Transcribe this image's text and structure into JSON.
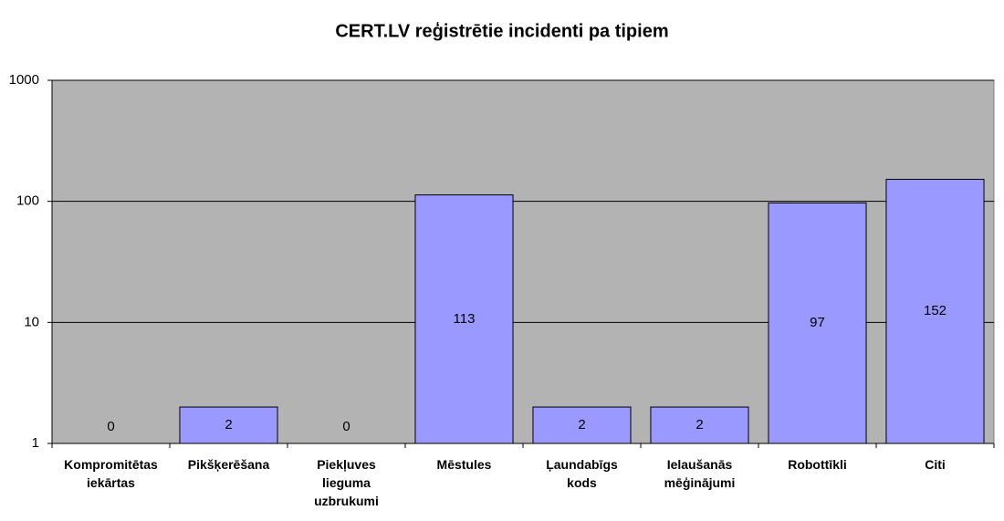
{
  "chart_data": {
    "type": "bar",
    "title": "CERT.LV reģistrētie incidenti pa tipiem",
    "categories": [
      "Kompromitētas iekārtas",
      "Pikšķerēšana",
      "Piekļuves lieguma uzbrukumi",
      "Mēstules",
      "Ļaundabīgs kods",
      "Ielaušanās mēģinājumi",
      "Robottīkli",
      "Citi"
    ],
    "values": [
      0,
      2,
      0,
      113,
      2,
      2,
      97,
      152
    ],
    "color": "#9999ff",
    "log_scale": true,
    "ylim": [
      1,
      1000
    ],
    "yticks": [
      1,
      10,
      100,
      1000
    ],
    "grid": true
  }
}
